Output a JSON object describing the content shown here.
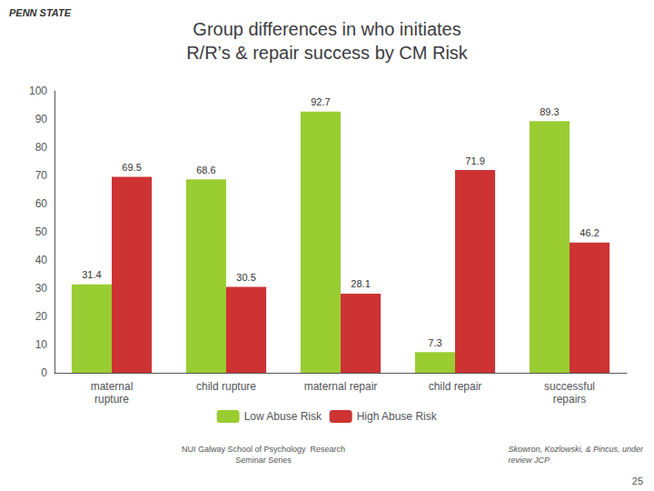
{
  "chart_data": {
    "type": "bar",
    "title": "Group differences in who initiates\nR/R’s & repair success by CM Risk",
    "annotations": [
      "PENN STATE",
      "NUI Galway School of Psychology  Research\nSeminar Series",
      "Skowron, Kozlowski, & Pincus, under\nreview JCP",
      "25"
    ],
    "categories": [
      "maternal\nrupture",
      "child rupture",
      "maternal repair",
      "child repair",
      "successful\nrepairs"
    ],
    "series": [
      {
        "name": "Low Abuse Risk",
        "color": "#9ACD32",
        "values": [
          31.4,
          68.6,
          92.7,
          7.3,
          89.3
        ]
      },
      {
        "name": "High Abuse Risk",
        "color": "#CD3333",
        "values": [
          69.5,
          30.5,
          28.1,
          71.9,
          46.2
        ]
      }
    ],
    "ylim": [
      0,
      100
    ],
    "yticks": [
      0,
      10,
      20,
      30,
      40,
      50,
      60,
      70,
      80,
      90,
      100
    ],
    "grid": false,
    "legend": "bottom",
    "data_labels": true
  }
}
